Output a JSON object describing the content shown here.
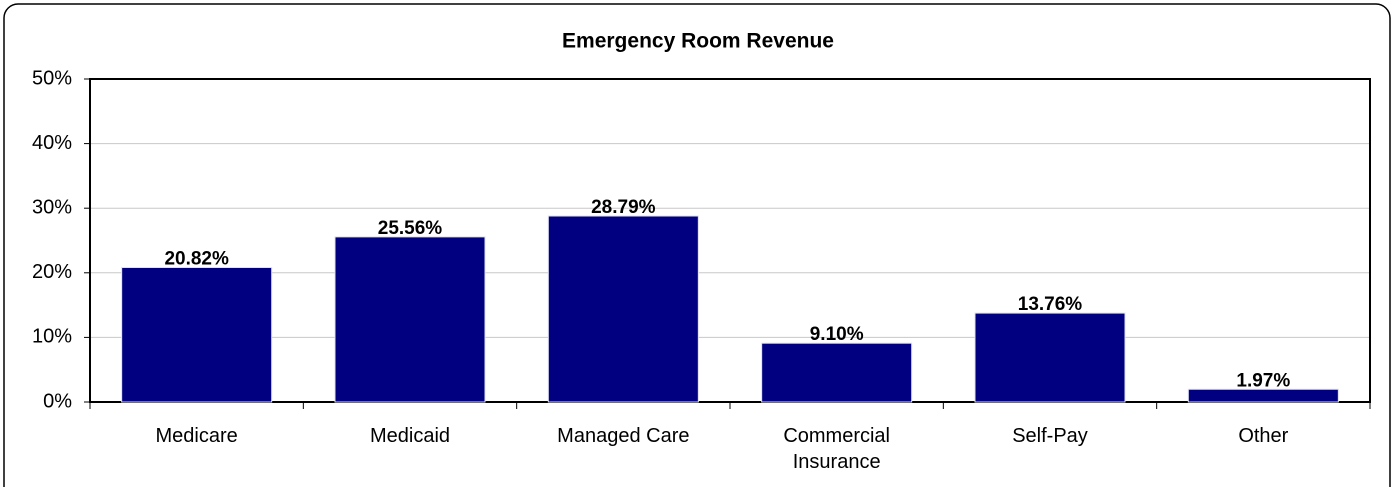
{
  "chart_data": {
    "type": "bar",
    "title": "Emergency Room Revenue",
    "categories": [
      "Medicare",
      "Medicaid",
      "Managed Care",
      "Commercial Insurance",
      "Self-Pay",
      "Other"
    ],
    "values": [
      20.82,
      25.56,
      28.79,
      9.1,
      13.76,
      1.97
    ],
    "value_labels": [
      "20.82%",
      "25.56%",
      "28.79%",
      "9.10%",
      "13.76%",
      "1.97%"
    ],
    "color": "#000080",
    "ylim": [
      0,
      50
    ],
    "yticks": [
      {
        "value": 0,
        "label": "0%"
      },
      {
        "value": 10,
        "label": "10%"
      },
      {
        "value": 20,
        "label": "20%"
      },
      {
        "value": 30,
        "label": "30%"
      },
      {
        "value": 40,
        "label": "40%"
      },
      {
        "value": 50,
        "label": "50%"
      }
    ],
    "grid": true
  }
}
